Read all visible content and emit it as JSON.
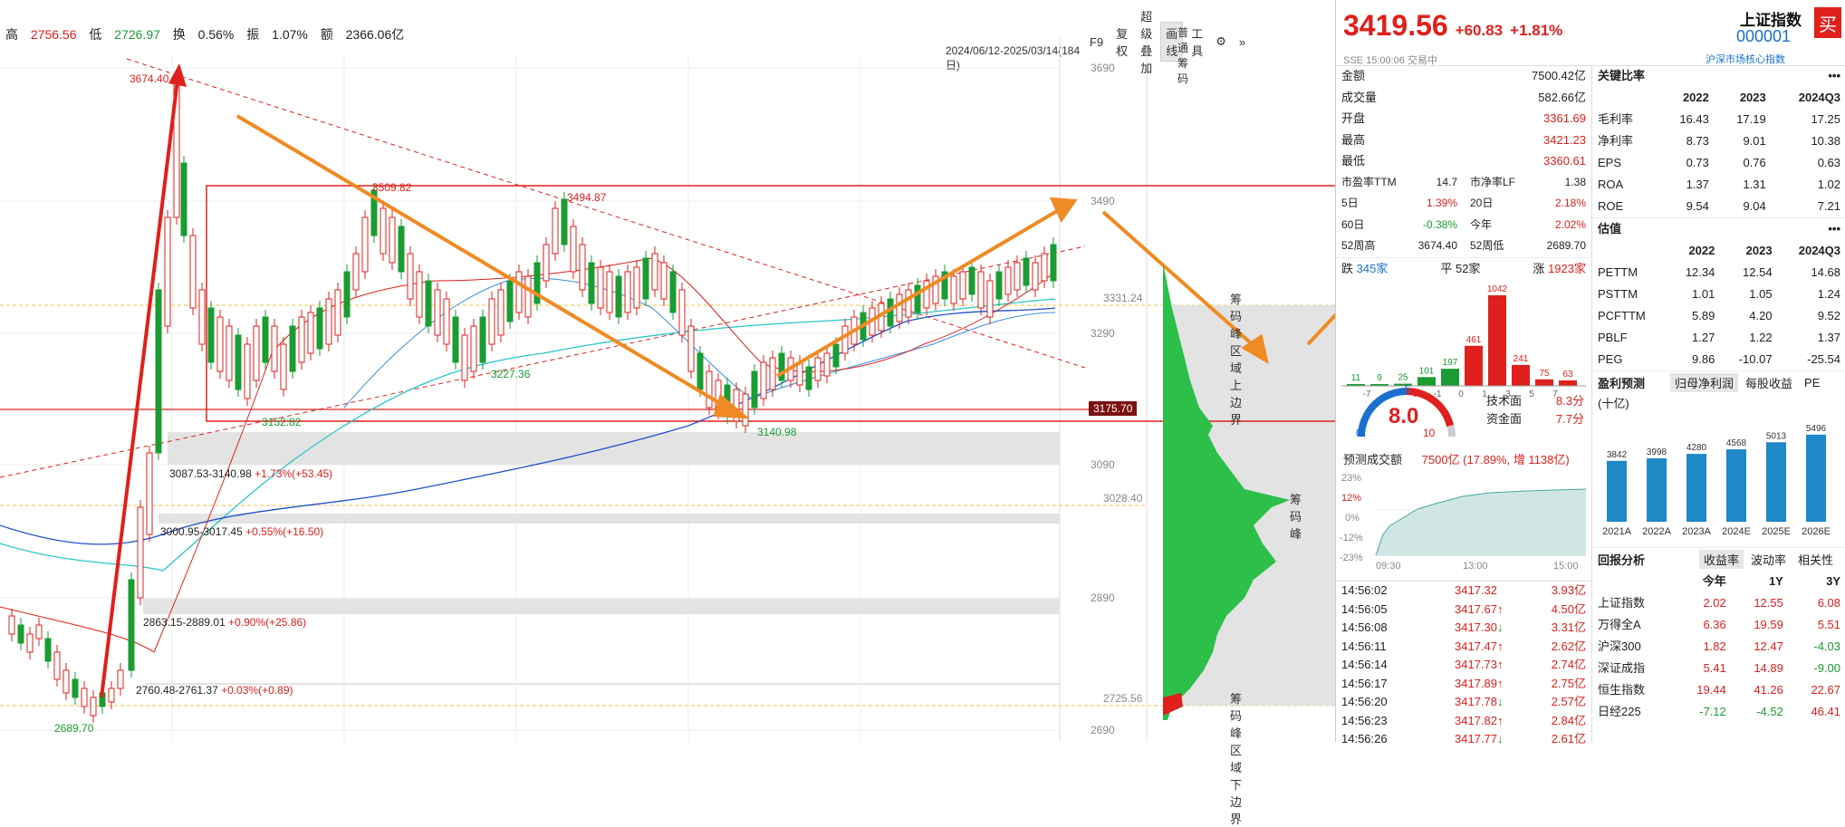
{
  "header": {
    "high_label": "高",
    "high": "2756.56",
    "low_label": "低",
    "low": "2726.97",
    "turnover_label": "换",
    "turnover": "0.56%",
    "amplitude_label": "振",
    "amplitude": "1.07%",
    "amount_label": "额",
    "amount": "2366.06亿",
    "date_range": "2024/06/12-2025/03/14(184日)"
  },
  "toolbar": {
    "f9": "F9",
    "restore": "复权",
    "overlay": "超级叠加",
    "draw": "画线",
    "tools": "工具",
    "chip_label": "普通筹码"
  },
  "price_axis": [
    "3690",
    "3490",
    "3331.24",
    "3290",
    "3090",
    "3028.40",
    "2890",
    "2725.56",
    "2690"
  ],
  "price_tag": "3175.70",
  "annotations": {
    "peak": "3674.40",
    "high2": "3509.82",
    "high3": "3494.87",
    "low1": "3152.82",
    "low2": "3227.36",
    "low3": "3140.98",
    "bottom": "2689.70",
    "gap1": "3087.53-3140.98",
    "gap1_pct": "+1.73%(+53.45)",
    "gap2": "3000.95-3017.45",
    "gap2_pct": "+0.55%(+16.50)",
    "gap3": "2863.15-2889.01",
    "gap3_pct": "+0.90%(+25.86)",
    "gap4": "2760.48-2761.37",
    "gap4_pct": "+0.03%(+0.89)"
  },
  "chips": {
    "upper_label": "筹码峰区域上边界",
    "peak_label": "筹码峰",
    "lower_label": "筹码峰区域下边界"
  },
  "quote": {
    "price": "3419.56",
    "change": "+60.83",
    "change_pct": "+1.81%",
    "name": "上证指数",
    "code": "000001",
    "buy": "买",
    "exchange": "SSE",
    "time": "15:00:06",
    "status": "交易中",
    "category": "沪深市场核心指数"
  },
  "stats": [
    {
      "label": "金额",
      "value": "7500.42亿",
      "color": "#222"
    },
    {
      "label": "成交量",
      "value": "582.66亿",
      "color": "#222"
    },
    {
      "label": "开盘",
      "value": "3361.69",
      "color": "#e0201d"
    },
    {
      "label": "最高",
      "value": "3421.23",
      "color": "#e0201d"
    },
    {
      "label": "最低",
      "value": "3360.61",
      "color": "#e0201d"
    }
  ],
  "stats2": [
    {
      "l1": "市盈率TTM",
      "v1": "14.7",
      "l2": "市净率LF",
      "v2": "1.38",
      "c1": "#222",
      "c2": "#222"
    },
    {
      "l1": "5日",
      "v1": "1.39%",
      "l2": "20日",
      "v2": "2.18%",
      "c1": "#e0201d",
      "c2": "#e0201d"
    },
    {
      "l1": "60日",
      "v1": "-0.38%",
      "l2": "今年",
      "v2": "2.02%",
      "c1": "#1a9c33",
      "c2": "#e0201d"
    },
    {
      "l1": "52周高",
      "v1": "3674.40",
      "l2": "52周低",
      "v2": "2689.70",
      "c1": "#222",
      "c2": "#222"
    }
  ],
  "breadth": {
    "down_label": "跌",
    "down": "345家",
    "flat_label": "平",
    "flat": "52家",
    "up_label": "涨",
    "up": "1923家"
  },
  "dist_bars": {
    "values": [
      11,
      9,
      25,
      101,
      197,
      461,
      1042,
      241,
      75,
      63
    ],
    "labels": [
      "-7",
      "-5",
      "-3",
      "-1",
      "0",
      "1",
      "3",
      "5",
      "7",
      ""
    ]
  },
  "gauge": {
    "score": "8.0",
    "min": "0",
    "mid": "5",
    "max": "10",
    "tech_label": "技术面",
    "tech": "8.3分",
    "fund_label": "资金面",
    "fund": "7.7分"
  },
  "forecast": {
    "label": "预测成交额",
    "value": "7500亿 (17.89%, 增 1138亿)"
  },
  "intraday": {
    "ticks": [
      "23%",
      "12%",
      "0%",
      "-12%",
      "-23%"
    ],
    "times": [
      "09:30",
      "13:00",
      "15:00"
    ]
  },
  "trades": [
    {
      "time": "14:56:02",
      "price": "3417.32",
      "vol": "3.93亿",
      "dir": ""
    },
    {
      "time": "14:56:05",
      "price": "3417.67",
      "vol": "4.50亿",
      "dir": "up"
    },
    {
      "time": "14:56:08",
      "price": "3417.30",
      "vol": "3.31亿",
      "dir": "down"
    },
    {
      "time": "14:56:11",
      "price": "3417.47",
      "vol": "2.62亿",
      "dir": "up"
    },
    {
      "time": "14:56:14",
      "price": "3417.73",
      "vol": "2.74亿",
      "dir": "up"
    },
    {
      "time": "14:56:17",
      "price": "3417.89",
      "vol": "2.75亿",
      "dir": "up"
    },
    {
      "time": "14:56:20",
      "price": "3417.78",
      "vol": "2.57亿",
      "dir": "down"
    },
    {
      "time": "14:56:23",
      "price": "3417.82",
      "vol": "2.84亿",
      "dir": "up"
    },
    {
      "time": "14:56:26",
      "price": "3417.77",
      "vol": "2.61亿",
      "dir": "down"
    }
  ],
  "ratios": {
    "title": "关键比率",
    "cols": [
      "2022",
      "2023",
      "2024Q3"
    ],
    "rows": [
      {
        "name": "毛利率",
        "v": [
          "16.43",
          "17.19",
          "17.25"
        ]
      },
      {
        "name": "净利率",
        "v": [
          "8.73",
          "9.01",
          "10.38"
        ]
      },
      {
        "name": "EPS",
        "v": [
          "0.73",
          "0.76",
          "0.63"
        ]
      },
      {
        "name": "ROA",
        "v": [
          "1.37",
          "1.31",
          "1.02"
        ]
      },
      {
        "name": "ROE",
        "v": [
          "9.54",
          "9.04",
          "7.21"
        ]
      }
    ]
  },
  "valuation": {
    "title": "估值",
    "cols": [
      "2022",
      "2023",
      "2024Q3"
    ],
    "rows": [
      {
        "name": "PETTM",
        "v": [
          "12.34",
          "12.54",
          "14.68"
        ]
      },
      {
        "name": "PSTTM",
        "v": [
          "1.01",
          "1.05",
          "1.24"
        ]
      },
      {
        "name": "PCFTTM",
        "v": [
          "5.89",
          "4.20",
          "9.52"
        ]
      },
      {
        "name": "PBLF",
        "v": [
          "1.27",
          "1.22",
          "1.37"
        ]
      },
      {
        "name": "PEG",
        "v": [
          "9.86",
          "-10.07",
          "-25.54"
        ]
      }
    ]
  },
  "forecast_chart": {
    "title": "盈利预测",
    "tabs": [
      "归母净利润",
      "每股收益",
      "PE"
    ],
    "unit": "(十亿)"
  },
  "chart_data": {
    "type": "bar",
    "categories": [
      "2021A",
      "2022A",
      "2023A",
      "2024E",
      "2025E",
      "2026E"
    ],
    "values": [
      3842,
      3998,
      4280,
      4568,
      5013,
      5496
    ],
    "title": "盈利预测"
  },
  "returns": {
    "title": "回报分析",
    "tabs": [
      "收益率",
      "波动率",
      "相关性"
    ],
    "cols": [
      "今年",
      "1Y",
      "3Y"
    ],
    "rows": [
      {
        "name": "上证指数",
        "v": [
          "2.02",
          "12.55",
          "6.08"
        ]
      },
      {
        "name": "万得全A",
        "v": [
          "6.36",
          "19.59",
          "5.51"
        ]
      },
      {
        "name": "沪深300",
        "v": [
          "1.82",
          "12.47",
          "-4.03"
        ]
      },
      {
        "name": "深证成指",
        "v": [
          "5.41",
          "14.89",
          "-9.00"
        ]
      },
      {
        "name": "恒生指数",
        "v": [
          "19.44",
          "41.26",
          "22.67"
        ]
      },
      {
        "name": "日经225",
        "v": [
          "-7.12",
          "-4.52",
          "46.41"
        ]
      }
    ]
  },
  "colors": {
    "up": "#e0201d",
    "down": "#1a9c33",
    "accent": "#f08a24",
    "bar": "#1f88c7"
  }
}
